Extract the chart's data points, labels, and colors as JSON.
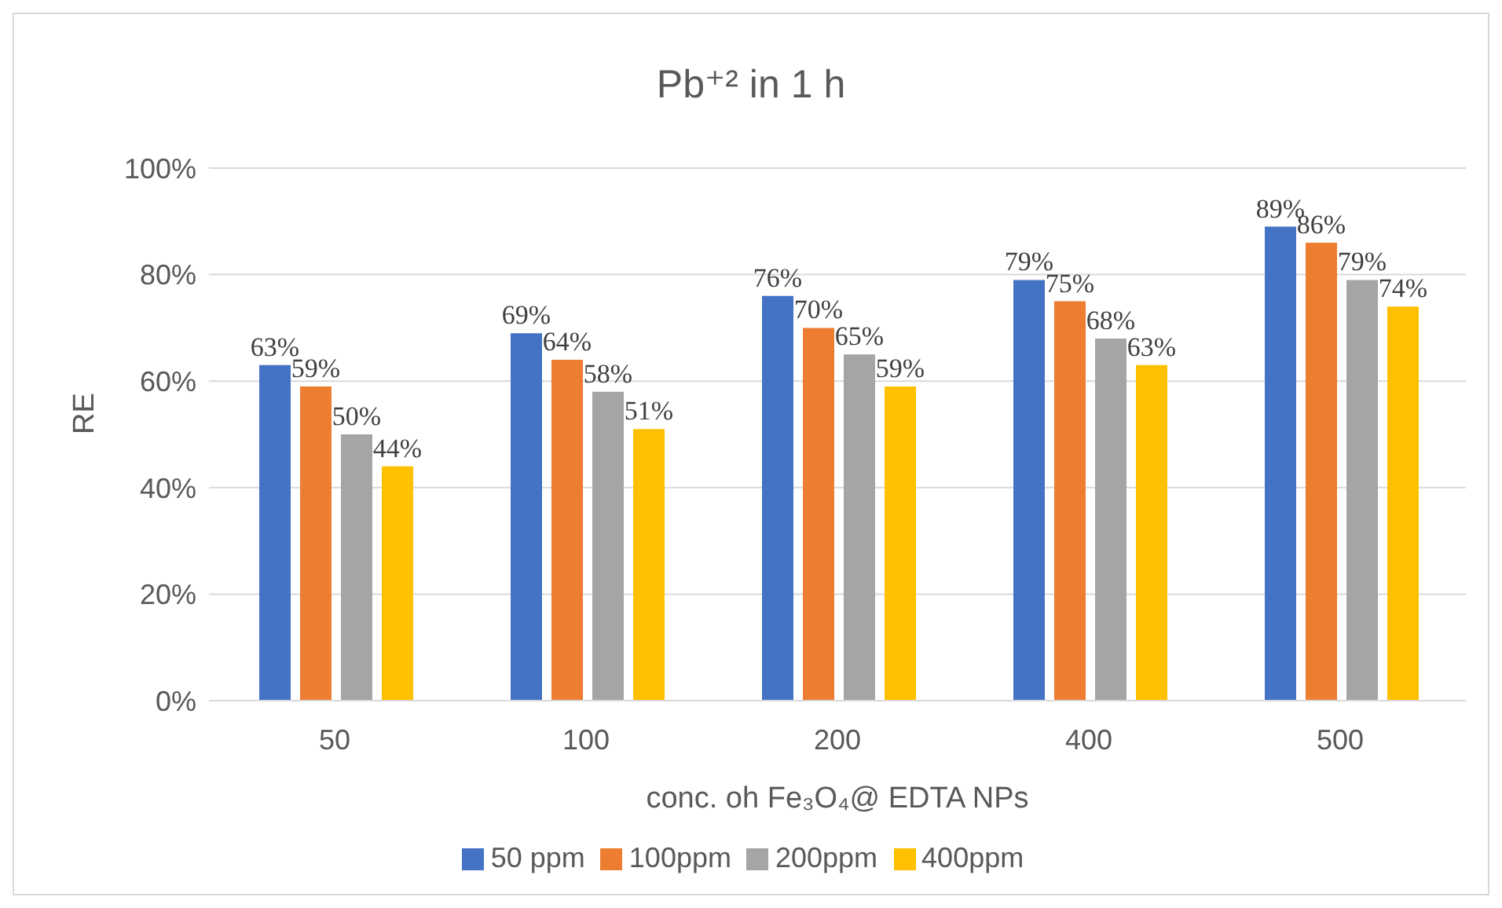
{
  "chart_data": {
    "type": "bar",
    "title": "Pb⁺² in 1 h",
    "xlabel": "conc. oh Fe₃O₄@ EDTA NPs",
    "ylabel": "RE",
    "categories": [
      "50",
      "100",
      "200",
      "400",
      "500"
    ],
    "series": [
      {
        "name": "50 ppm",
        "color": "#4472c4",
        "values": [
          63,
          69,
          76,
          79,
          89
        ],
        "value_labels": [
          "63%",
          "69%",
          "76%",
          "79%",
          "89%"
        ]
      },
      {
        "name": "100ppm",
        "color": "#ed7d31",
        "values": [
          59,
          64,
          70,
          75,
          86
        ],
        "value_labels": [
          "59%",
          "64%",
          "70%",
          "75%",
          "86%"
        ]
      },
      {
        "name": "200ppm",
        "color": "#a5a5a5",
        "values": [
          50,
          58,
          65,
          68,
          79
        ],
        "value_labels": [
          "50%",
          "58%",
          "65%",
          "68%",
          "79%"
        ]
      },
      {
        "name": "400ppm",
        "color": "#ffc000",
        "values": [
          44,
          51,
          59,
          63,
          74
        ],
        "value_labels": [
          "44%",
          "51%",
          "59%",
          "63%",
          "74%"
        ]
      }
    ],
    "ylim": [
      0,
      100
    ],
    "yticks": [
      {
        "value": 0,
        "label": "0%"
      },
      {
        "value": 20,
        "label": "20%"
      },
      {
        "value": 40,
        "label": "40%"
      },
      {
        "value": 60,
        "label": "60%"
      },
      {
        "value": 80,
        "label": "80%"
      },
      {
        "value": 100,
        "label": "100%"
      }
    ],
    "grid": "y",
    "legend": "bottom"
  }
}
